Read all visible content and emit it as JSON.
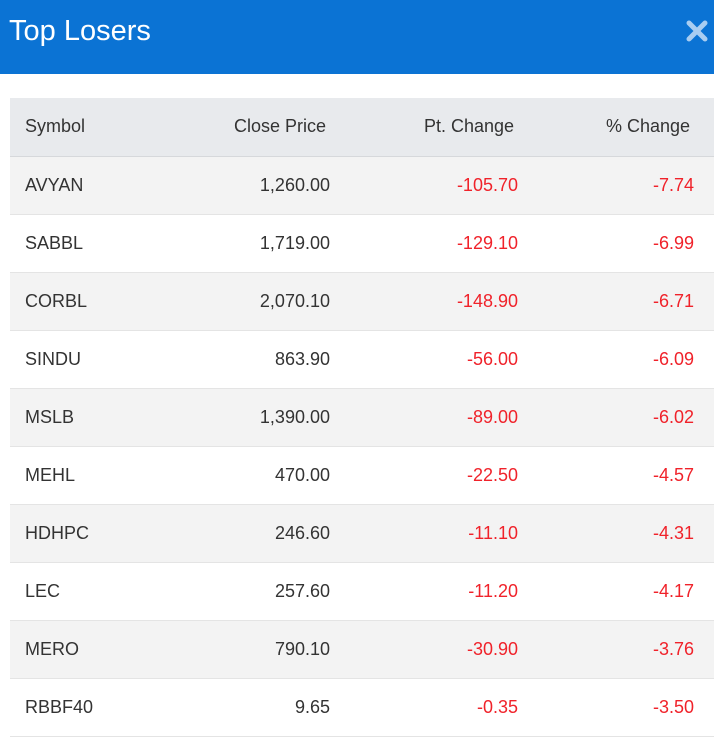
{
  "header": {
    "title": "Top Losers",
    "close_icon": "close-icon",
    "accent_color": "#0b73d4"
  },
  "table": {
    "columns": [
      "Symbol",
      "Close Price",
      "Pt. Change",
      "% Change"
    ],
    "negative_color": "#f0222a",
    "rows": [
      {
        "symbol": "AVYAN",
        "close": "1,260.00",
        "pt": "-105.70",
        "pct": "-7.74"
      },
      {
        "symbol": "SABBL",
        "close": "1,719.00",
        "pt": "-129.10",
        "pct": "-6.99"
      },
      {
        "symbol": "CORBL",
        "close": "2,070.10",
        "pt": "-148.90",
        "pct": "-6.71"
      },
      {
        "symbol": "SINDU",
        "close": "863.90",
        "pt": "-56.00",
        "pct": "-6.09"
      },
      {
        "symbol": "MSLB",
        "close": "1,390.00",
        "pt": "-89.00",
        "pct": "-6.02"
      },
      {
        "symbol": "MEHL",
        "close": "470.00",
        "pt": "-22.50",
        "pct": "-4.57"
      },
      {
        "symbol": "HDHPC",
        "close": "246.60",
        "pt": "-11.10",
        "pct": "-4.31"
      },
      {
        "symbol": "LEC",
        "close": "257.60",
        "pt": "-11.20",
        "pct": "-4.17"
      },
      {
        "symbol": "MERO",
        "close": "790.10",
        "pt": "-30.90",
        "pct": "-3.76"
      },
      {
        "symbol": "RBBF40",
        "close": "9.65",
        "pt": "-0.35",
        "pct": "-3.50"
      }
    ]
  }
}
